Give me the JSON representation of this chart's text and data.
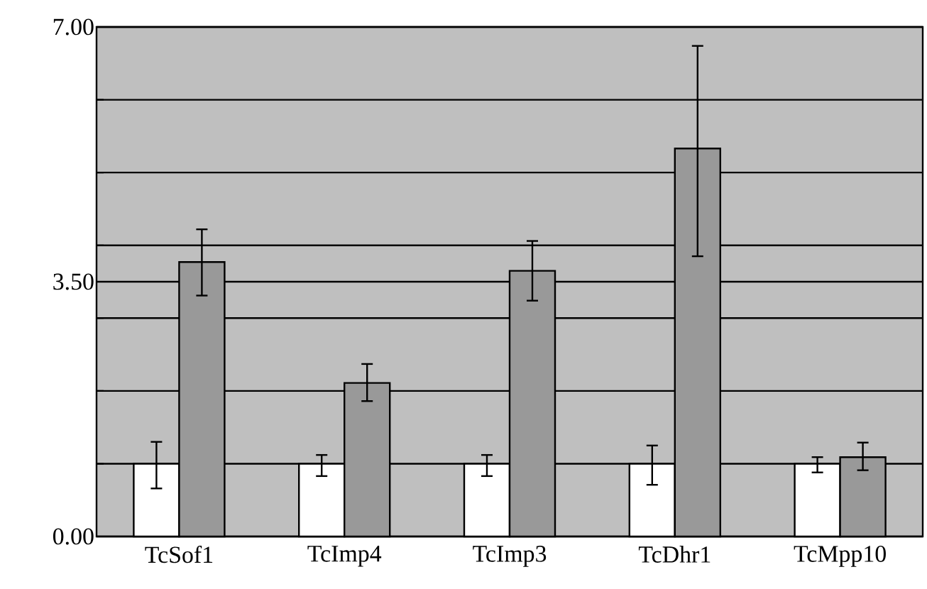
{
  "chart_data": {
    "type": "bar",
    "categories": [
      "TcSof1",
      "TcImp4",
      "TcImp3",
      "TcDhr1",
      "TcMpp10"
    ],
    "series": [
      {
        "color": "#ffffff",
        "values": [
          1.0,
          1.0,
          1.0,
          1.0,
          1.0
        ],
        "errors": [
          [
            0.66,
            1.3
          ],
          [
            0.83,
            1.12
          ],
          [
            0.83,
            1.12
          ],
          [
            0.71,
            1.25
          ],
          [
            0.88,
            1.09
          ]
        ]
      },
      {
        "color": "#999999",
        "values": [
          3.77,
          2.11,
          3.65,
          5.33,
          1.09
        ],
        "errors": [
          [
            3.31,
            4.22
          ],
          [
            1.86,
            2.37
          ],
          [
            3.24,
            4.06
          ],
          [
            3.85,
            6.74
          ],
          [
            0.91,
            1.29
          ]
        ]
      }
    ],
    "ylim": [
      0,
      7
    ],
    "yticks": [
      {
        "value": 0,
        "label": "0.00"
      },
      {
        "value": 1,
        "label": null
      },
      {
        "value": 2,
        "label": null
      },
      {
        "value": 3,
        "label": null
      },
      {
        "value": 3.5,
        "label": "3.50"
      },
      {
        "value": 4,
        "label": null
      },
      {
        "value": 5,
        "label": null
      },
      {
        "value": 6,
        "label": null
      },
      {
        "value": 7,
        "label": "7.00"
      }
    ],
    "grid": "y"
  }
}
